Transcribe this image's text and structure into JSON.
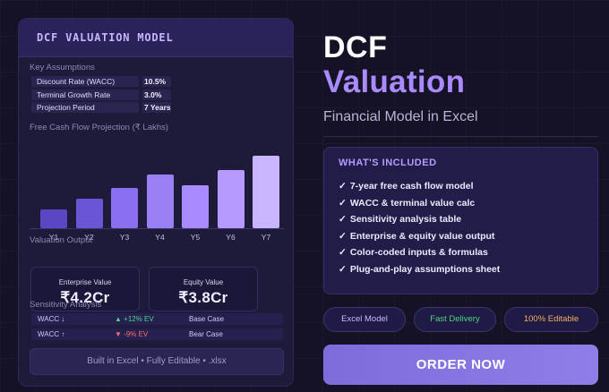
{
  "model_card": {
    "title": "DCF VALUATION MODEL",
    "assumptions_label": "Key Assumptions",
    "assumptions": [
      {
        "name": "Discount Rate (WACC)",
        "value": "10.5%"
      },
      {
        "name": "Terminal Growth Rate",
        "value": "3.0%"
      },
      {
        "name": "Projection Period",
        "value": "7 Years"
      }
    ],
    "chart_label": "Free Cash Flow Projection (₹ Lakhs)",
    "valuation_label": "Valuation Output",
    "kpis": [
      {
        "label": "Enterprise Value",
        "value": "₹4.2Cr"
      },
      {
        "label": "Equity Value",
        "value": "₹3.8Cr"
      }
    ],
    "sensitivity_label": "Sensitivity Analysis",
    "sensitivity_rows": [
      {
        "wacc": "WACC ↓",
        "ev": "▲ +12% EV",
        "case": "Base Case",
        "direction": "up"
      },
      {
        "wacc": "WACC ↑",
        "ev": "▼ -9% EV",
        "case": "Bear Case",
        "direction": "down"
      }
    ],
    "footer": "Built in Excel • Fully Editable • .xlsx"
  },
  "chart_data": {
    "type": "bar",
    "categories": [
      "Y1",
      "Y2",
      "Y3",
      "Y4",
      "Y5",
      "Y6",
      "Y7"
    ],
    "values": [
      28,
      43,
      59,
      78,
      63,
      85,
      106
    ],
    "ylim": [
      0,
      110
    ],
    "colors": [
      "#5b46c4",
      "#6a55d6",
      "#8a6ff0",
      "#9a80f4",
      "#a98aff",
      "#b79aff",
      "#c9b4ff"
    ],
    "title": "Free Cash Flow Projection (₹ Lakhs)",
    "grid": false
  },
  "hero": {
    "line1": "DCF",
    "line2": "Valuation",
    "subtitle": "Financial Model in Excel"
  },
  "included": {
    "title": "WHAT'S INCLUDED",
    "check": "✓",
    "items": [
      "7-year free cash flow model",
      "WACC & terminal value calc",
      "Sensitivity analysis table",
      "Enterprise & equity value output",
      "Color-coded inputs & formulas",
      "Plug-and-play assumptions sheet"
    ]
  },
  "pills": [
    {
      "label": "Excel Model",
      "color": "#c9b8ff"
    },
    {
      "label": "Fast Delivery",
      "color": "#4ed28a"
    },
    {
      "label": "100% Editable",
      "color": "#f2b15e"
    }
  ],
  "cta": {
    "label": "ORDER NOW"
  },
  "colors": {
    "accent": "#a98aff",
    "positive": "#4ed28a",
    "negative": "#ff6b6b",
    "background": "#151226"
  }
}
